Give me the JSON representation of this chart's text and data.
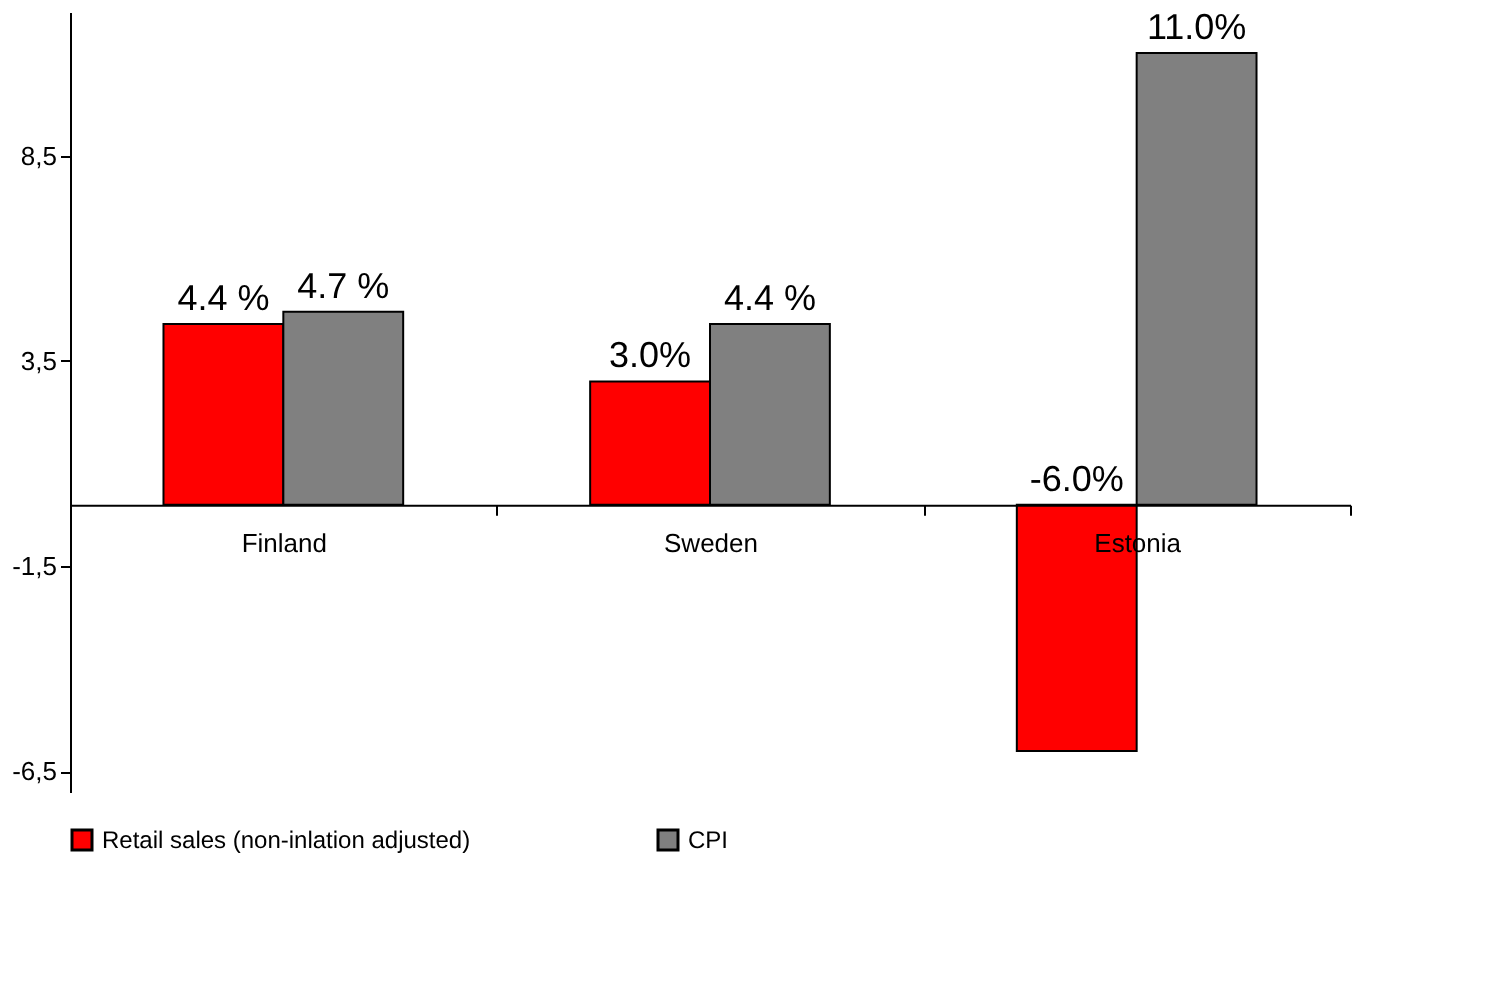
{
  "chart_data": {
    "type": "bar",
    "categories": [
      "Finland",
      "Sweden",
      "Estonia"
    ],
    "series": [
      {
        "name": "Retail sales (non-inlation adjusted)",
        "color": "#ff0000",
        "values": [
          4.4,
          3.0,
          -6.0
        ],
        "value_labels": [
          "4.4 %",
          "3.0%",
          "-6.0%"
        ]
      },
      {
        "name": "CPI",
        "color": "#808080",
        "values": [
          4.7,
          4.4,
          11.0
        ],
        "value_labels": [
          "4.7 %",
          "4.4 %",
          "11.0%"
        ]
      }
    ],
    "ylim": [
      -7,
      12
    ],
    "yticks": [
      {
        "value": -6.5,
        "label": "-6,5"
      },
      {
        "value": -1.5,
        "label": "-1,5"
      },
      {
        "value": 3.5,
        "label": "3,5"
      },
      {
        "value": 8.5,
        "label": "8,5"
      }
    ],
    "grid": false,
    "legend": "bottom"
  }
}
